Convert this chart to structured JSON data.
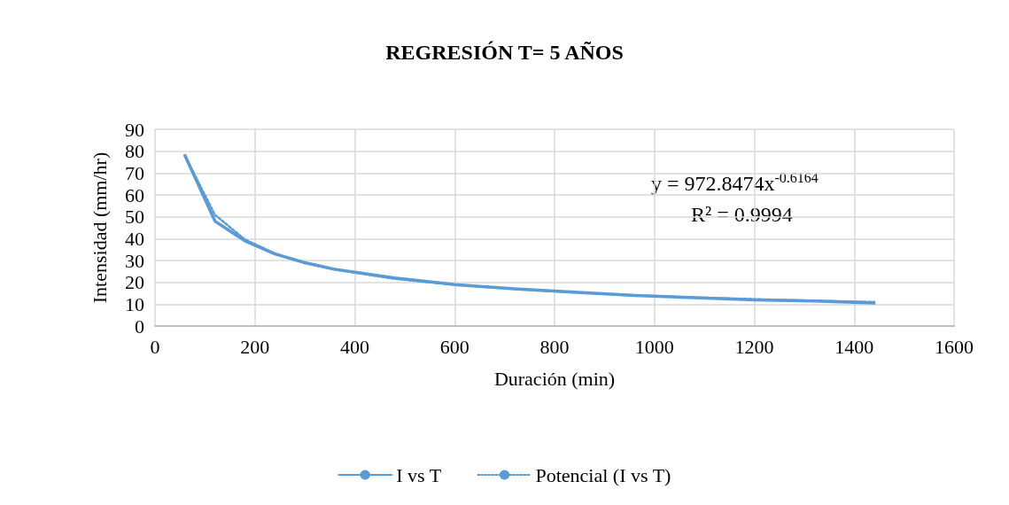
{
  "chart_data": {
    "type": "line",
    "title": "REGRESIÓN T= 5 AÑOS",
    "xlabel": "Duración (min)",
    "ylabel": "Intensidad (mm/hr)",
    "x": [
      60,
      120,
      180,
      240,
      300,
      360,
      480,
      600,
      720,
      840,
      960,
      1080,
      1200,
      1320,
      1440
    ],
    "series": [
      {
        "name": "I vs T",
        "color": "#5b9bd5",
        "line_style": "solid",
        "values": [
          78,
          48,
          39,
          33,
          29,
          26,
          22,
          19,
          17,
          15.5,
          14,
          13,
          12,
          11.5,
          10.5
        ]
      },
      {
        "name": "Potencial (I vs T)",
        "color": "#5b9bd5",
        "line_style": "dotted",
        "values": [
          77.9,
          50.9,
          39.6,
          33.2,
          28.9,
          25.8,
          21.6,
          18.9,
          16.9,
          15.3,
          14.1,
          13.1,
          12.3,
          11.6,
          11.0
        ]
      }
    ],
    "xlim": [
      0,
      1600
    ],
    "xticks": [
      0,
      200,
      400,
      600,
      800,
      1000,
      1200,
      1400,
      1600
    ],
    "ylim": [
      0,
      90
    ],
    "yticks": [
      0,
      10,
      20,
      30,
      40,
      50,
      60,
      70,
      80,
      90
    ],
    "annotations": [
      "y = 972.8474x$^{-0.6164}$",
      "R² = 0.9994"
    ],
    "grid": true,
    "legend": "bottom",
    "marker": "none"
  }
}
